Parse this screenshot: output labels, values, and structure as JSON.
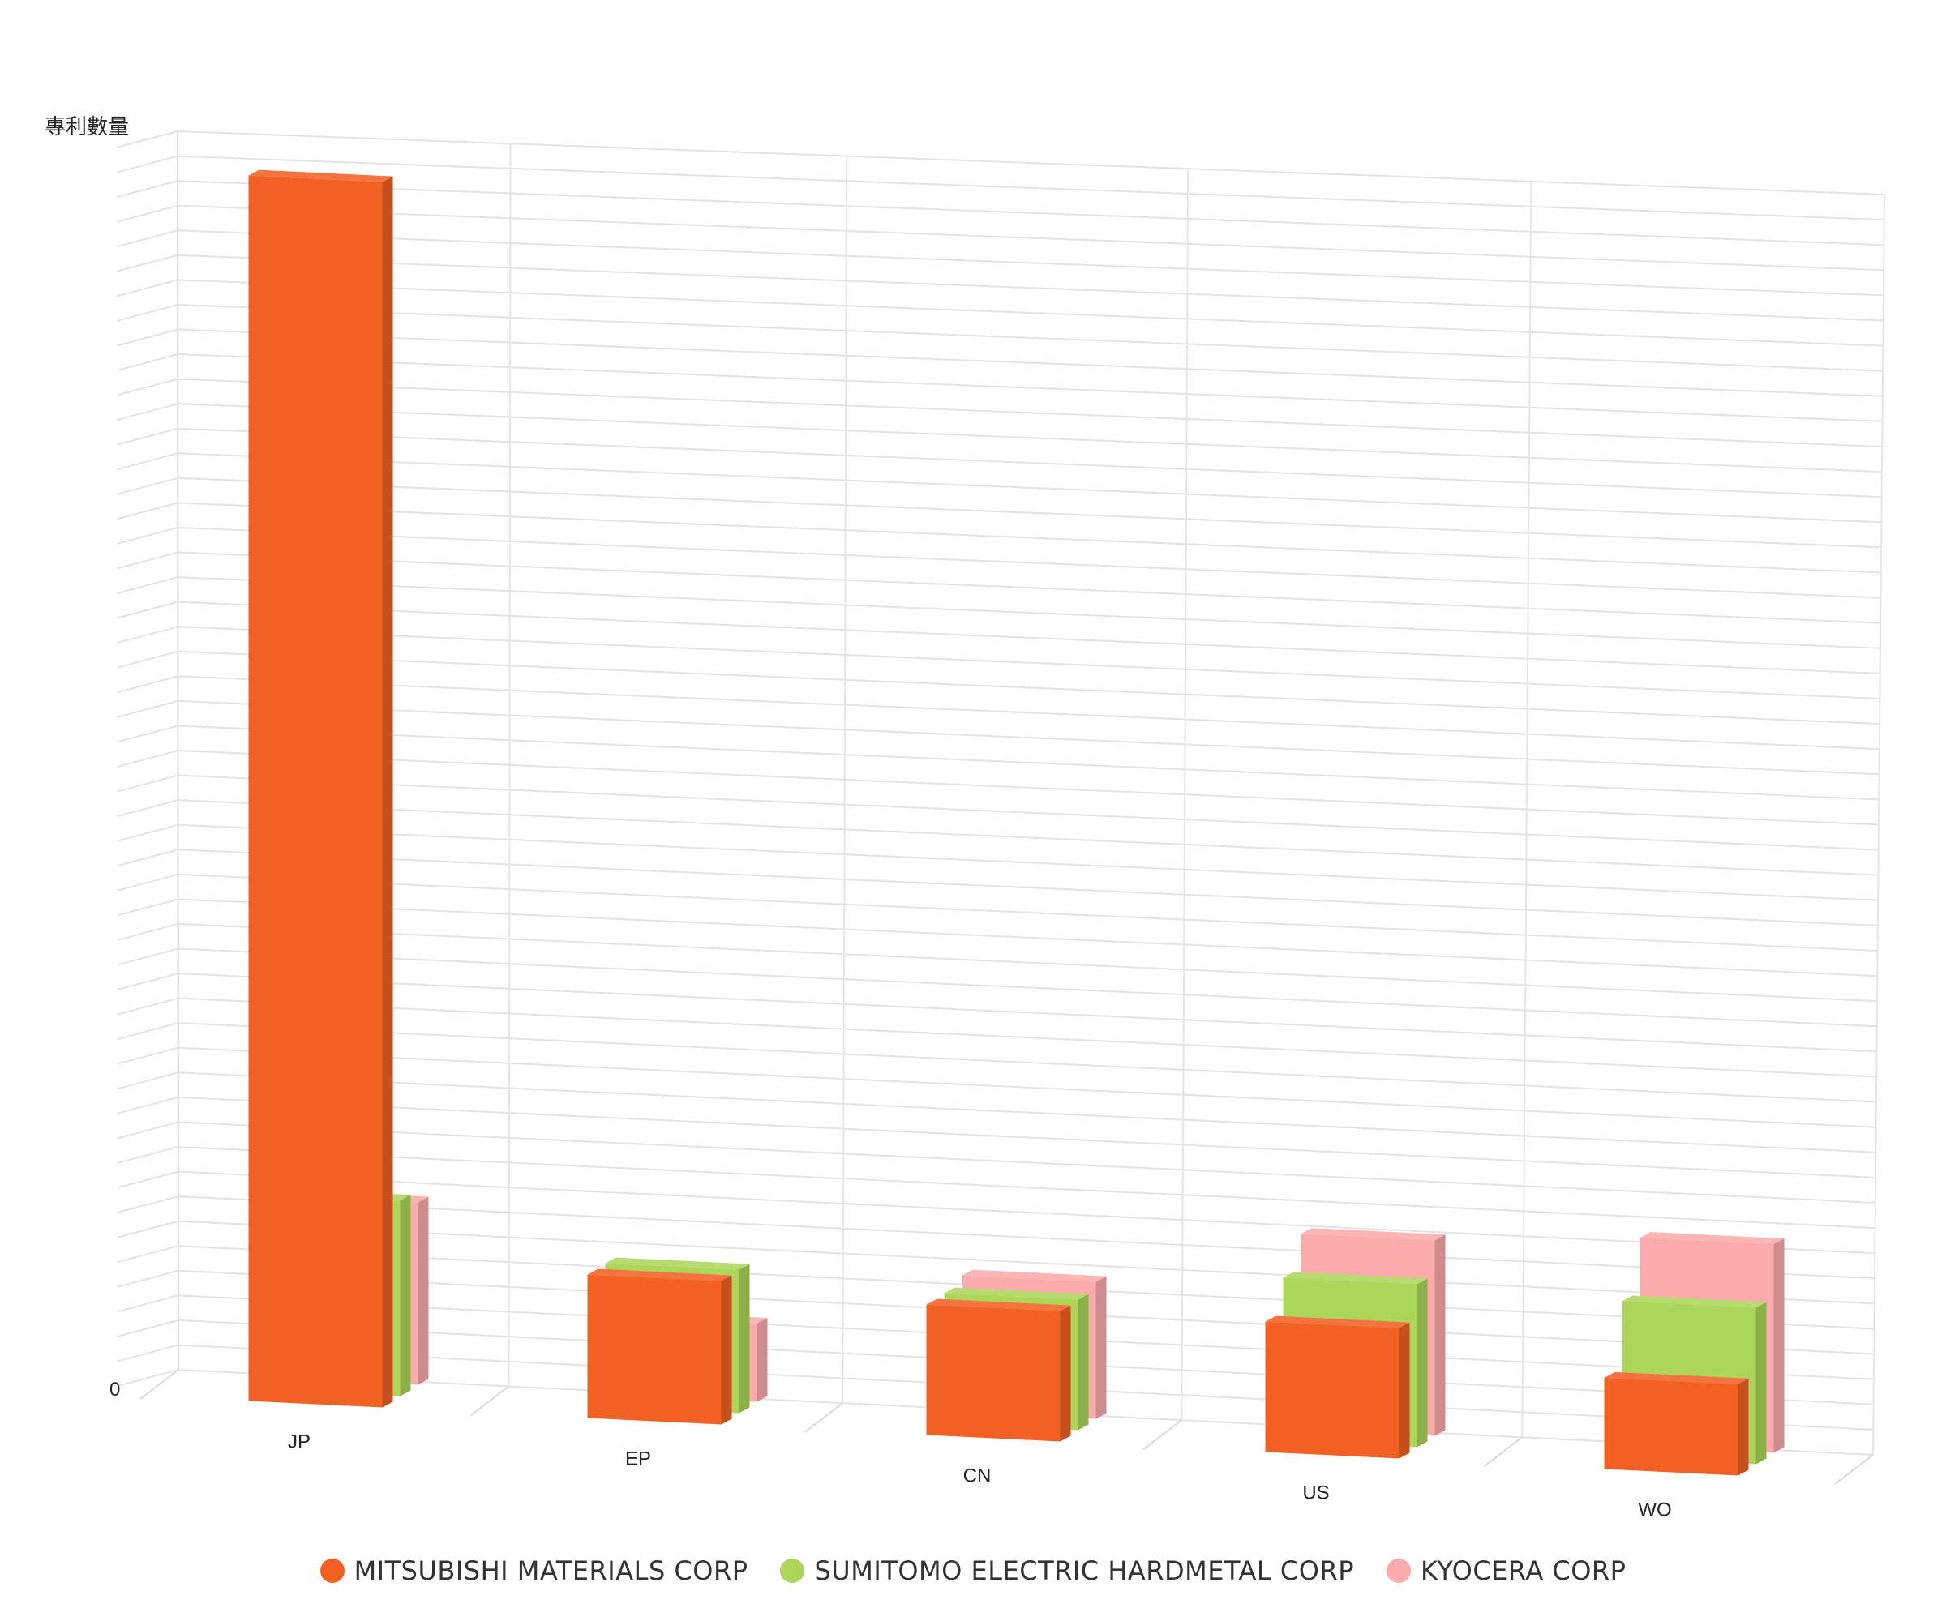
{
  "chart_data": {
    "type": "bar",
    "ylabel": "專利數量",
    "ytick_labels": [
      "0"
    ],
    "categories": [
      "JP",
      "EP",
      "CN",
      "US",
      "WO"
    ],
    "series": [
      {
        "name": "MITSUBISHI MATERIALS CORP",
        "color": "#f26024",
        "values": [
          1880,
          220,
          200,
          200,
          140
        ]
      },
      {
        "name": "SUMITOMO ELECTRIC HARDMETAL CORP",
        "color": "#acd65a",
        "values": [
          300,
          220,
          200,
          250,
          240
        ]
      },
      {
        "name": "KYOCERA CORP",
        "color": "#fbabab",
        "values": [
          280,
          120,
          210,
          300,
          320
        ]
      }
    ],
    "ylim": [
      0,
      1900
    ],
    "grid": true,
    "legend": "bottom-center"
  }
}
